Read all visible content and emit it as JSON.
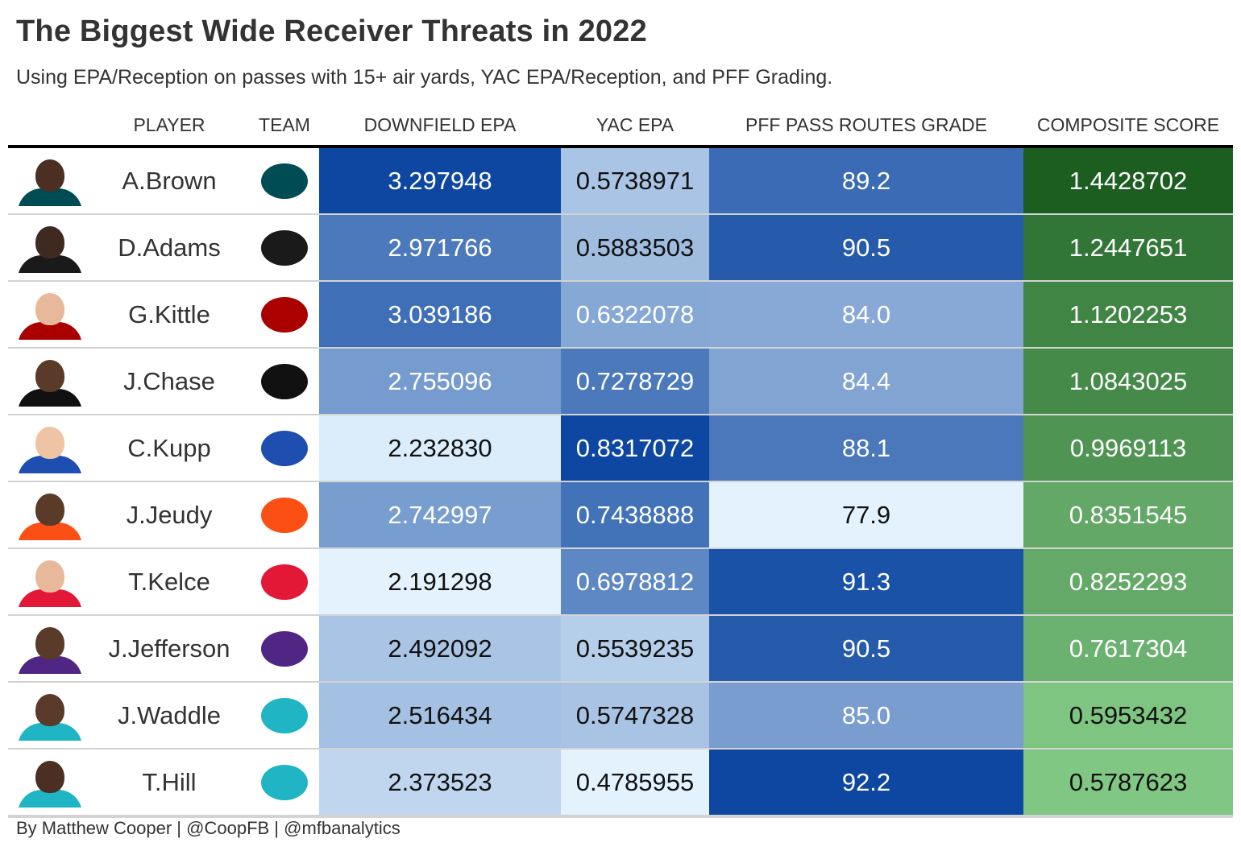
{
  "title": "The Biggest Wide Receiver Threats in 2022",
  "subtitle": "Using EPA/Reception on passes with 15+ air yards, YAC EPA/Reception, and PFF Grading.",
  "footer": "By Matthew Cooper | @CoopFB | @mfbanalytics",
  "chart_data": {
    "type": "table",
    "columns": [
      "",
      "PLAYER",
      "TEAM",
      "DOWNFIELD EPA",
      "YAC EPA",
      "PFF PASS ROUTES GRADE",
      "COMPOSITE SCORE"
    ],
    "rows": [
      {
        "player": "A.Brown",
        "team_icon": "eagles-logo-icon",
        "team_color": "#004c54",
        "skin": "#4a2f22",
        "downfield_epa": "3.297948",
        "yac_epa": "0.5738971",
        "pff_grade": "89.2",
        "composite": "1.4428702"
      },
      {
        "player": "D.Adams",
        "team_icon": "raiders-logo-icon",
        "team_color": "#1a1a1a",
        "skin": "#3e2a20",
        "downfield_epa": "2.971766",
        "yac_epa": "0.5883503",
        "pff_grade": "90.5",
        "composite": "1.2447651"
      },
      {
        "player": "G.Kittle",
        "team_icon": "49ers-logo-icon",
        "team_color": "#aa0000",
        "skin": "#e7b99a",
        "downfield_epa": "3.039186",
        "yac_epa": "0.6322078",
        "pff_grade": "84.0",
        "composite": "1.1202253"
      },
      {
        "player": "J.Chase",
        "team_icon": "bengals-logo-icon",
        "team_color": "#111111",
        "skin": "#5a3a28",
        "downfield_epa": "2.755096",
        "yac_epa": "0.7278729",
        "pff_grade": "84.4",
        "composite": "1.0843025"
      },
      {
        "player": "C.Kupp",
        "team_icon": "rams-logo-icon",
        "team_color": "#1e4fb0",
        "skin": "#efc4a4",
        "downfield_epa": "2.232830",
        "yac_epa": "0.8317072",
        "pff_grade": "88.1",
        "composite": "0.9969113"
      },
      {
        "player": "J.Jeudy",
        "team_icon": "broncos-logo-icon",
        "team_color": "#fb4f14",
        "skin": "#5a3a28",
        "downfield_epa": "2.742997",
        "yac_epa": "0.7438888",
        "pff_grade": "77.9",
        "composite": "0.8351545"
      },
      {
        "player": "T.Kelce",
        "team_icon": "chiefs-logo-icon",
        "team_color": "#e31837",
        "skin": "#e7b99a",
        "downfield_epa": "2.191298",
        "yac_epa": "0.6978812",
        "pff_grade": "91.3",
        "composite": "0.8252293"
      },
      {
        "player": "J.Jefferson",
        "team_icon": "vikings-logo-icon",
        "team_color": "#4f2683",
        "skin": "#5a3a28",
        "downfield_epa": "2.492092",
        "yac_epa": "0.5539235",
        "pff_grade": "90.5",
        "composite": "0.7617304"
      },
      {
        "player": "J.Waddle",
        "team_icon": "dolphins-logo-icon",
        "team_color": "#1fb5c4",
        "skin": "#5a3a28",
        "downfield_epa": "2.516434",
        "yac_epa": "0.5747328",
        "pff_grade": "85.0",
        "composite": "0.5953432"
      },
      {
        "player": "T.Hill",
        "team_icon": "dolphins-logo-icon",
        "team_color": "#1fb5c4",
        "skin": "#4a2f22",
        "downfield_epa": "2.373523",
        "yac_epa": "0.4785955",
        "pff_grade": "92.2",
        "composite": "0.5787623"
      }
    ],
    "color_scales": {
      "blue_light": "#e3f2fd",
      "blue_dark": "#0d47a1",
      "green_light": "#81c784",
      "green_dark": "#1b5e20"
    }
  }
}
